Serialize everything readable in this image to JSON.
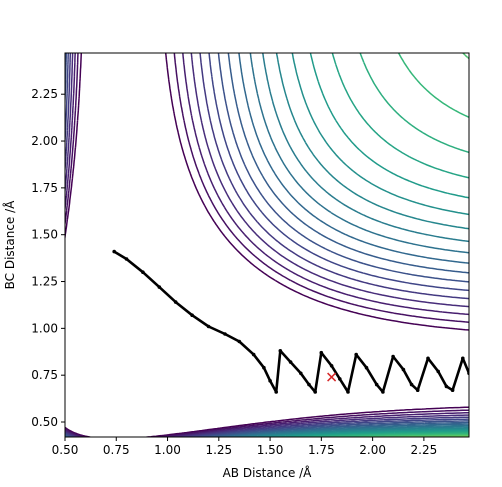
{
  "chart_data": {
    "type": "contour",
    "xlabel": "AB Distance /Å",
    "ylabel": "BC Distance /Å",
    "xlim": [
      0.5,
      2.47
    ],
    "ylim": [
      0.42,
      2.47
    ],
    "x_ticks": [
      "0.50",
      "0.75",
      "1.00",
      "1.25",
      "1.50",
      "1.75",
      "2.00",
      "2.25"
    ],
    "y_ticks": [
      "0.50",
      "0.75",
      "1.00",
      "1.25",
      "1.50",
      "1.75",
      "2.00",
      "2.25"
    ],
    "colormap": [
      "#440154",
      "#482878",
      "#3e4989",
      "#31688e",
      "#26828e",
      "#1f9e89",
      "#35b779",
      "#6ece58",
      "#b5de2b",
      "#fde725"
    ],
    "contour_levels": [
      -95,
      -90,
      -85,
      -80,
      -75,
      -70,
      -65,
      -60,
      -55,
      -50,
      -45,
      -40,
      -35,
      -30,
      -25,
      -20,
      -15,
      -10,
      -5,
      0,
      5,
      10,
      20,
      40,
      80
    ],
    "potential": {
      "D": 110,
      "a": 2.2,
      "re": 0.74,
      "asymptote_level": -100
    },
    "trajectory": {
      "color": "#000000",
      "points": [
        [
          0.74,
          1.41
        ],
        [
          0.8,
          1.37
        ],
        [
          0.88,
          1.3
        ],
        [
          0.96,
          1.22
        ],
        [
          1.04,
          1.14
        ],
        [
          1.12,
          1.07
        ],
        [
          1.2,
          1.01
        ],
        [
          1.28,
          0.97
        ],
        [
          1.35,
          0.93
        ],
        [
          1.42,
          0.86
        ],
        [
          1.47,
          0.79
        ],
        [
          1.5,
          0.72
        ],
        [
          1.53,
          0.66
        ],
        [
          1.55,
          0.88
        ],
        [
          1.6,
          0.82
        ],
        [
          1.65,
          0.76
        ],
        [
          1.69,
          0.7
        ],
        [
          1.72,
          0.66
        ],
        [
          1.75,
          0.87
        ],
        [
          1.8,
          0.8
        ],
        [
          1.84,
          0.73
        ],
        [
          1.88,
          0.66
        ],
        [
          1.92,
          0.86
        ],
        [
          1.97,
          0.79
        ],
        [
          2.02,
          0.7
        ],
        [
          2.05,
          0.66
        ],
        [
          2.1,
          0.85
        ],
        [
          2.15,
          0.78
        ],
        [
          2.19,
          0.7
        ],
        [
          2.22,
          0.67
        ],
        [
          2.27,
          0.84
        ],
        [
          2.32,
          0.77
        ],
        [
          2.36,
          0.69
        ],
        [
          2.39,
          0.67
        ],
        [
          2.44,
          0.84
        ],
        [
          2.47,
          0.76
        ]
      ]
    },
    "marker": {
      "x": 1.8,
      "y": 0.74,
      "symbol": "x",
      "color": "#d62728"
    }
  }
}
